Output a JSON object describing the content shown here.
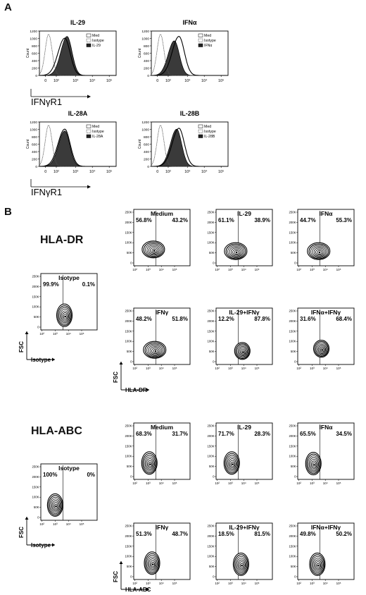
{
  "panels": [
    {
      "letter": "A"
    },
    {
      "letter": "B"
    }
  ],
  "section_a": {
    "xaxis_label": "IFNγR1",
    "ylabel": "Count",
    "yticks": [
      "0",
      "200",
      "400",
      "600",
      "800",
      "1000",
      "1200"
    ],
    "xticks": [
      "0",
      "10²",
      "10³",
      "10⁴",
      "10⁵"
    ]
  },
  "section_b": {
    "groups": [
      {
        "title": "HLA-DR",
        "xlabel": "HLA-DR",
        "iso_xlabel": "Isotype"
      },
      {
        "title": "HLA-ABC",
        "xlabel": "HLA-ABC",
        "iso_xlabel": "Isotype"
      }
    ],
    "ylabel": "FSC",
    "yticks": [
      "0",
      "50K",
      "100K",
      "150K",
      "200K",
      "250K"
    ],
    "xticks": [
      "10²",
      "10³",
      "10⁴",
      "10⁵"
    ]
  },
  "chart_data": [
    {
      "type": "histogram",
      "title": "IL-29",
      "legend": [
        "Med",
        "Isotype",
        "IL-29"
      ],
      "xlabel": "IFNγR1",
      "ylabel": "Count",
      "ylim": [
        0,
        1200
      ]
    },
    {
      "type": "histogram",
      "title": "IFNα",
      "legend": [
        "Med",
        "Isotype",
        "IFNα"
      ],
      "xlabel": "IFNγR1",
      "ylabel": "Count",
      "ylim": [
        0,
        1200
      ]
    },
    {
      "type": "histogram",
      "title": "IL-28A",
      "legend": [
        "Med",
        "Isotype",
        "IL-28A"
      ],
      "xlabel": "IFNγR1",
      "ylabel": "Count",
      "ylim": [
        0,
        1200
      ]
    },
    {
      "type": "histogram",
      "title": "IL-28B",
      "legend": [
        "Med",
        "Isotype",
        "IL-28B"
      ],
      "xlabel": "IFNγR1",
      "ylabel": "Count",
      "ylim": [
        0,
        1200
      ]
    },
    {
      "type": "contour",
      "group": "HLA-DR",
      "title": "Isotype",
      "left_pct": "99.9%",
      "right_pct": "0.1%",
      "center_log": 3.4
    },
    {
      "type": "contour",
      "group": "HLA-DR",
      "title": "Medium",
      "left_pct": "56.8%",
      "right_pct": "43.2%",
      "center_log": 3.1
    },
    {
      "type": "contour",
      "group": "HLA-DR",
      "title": "IL-29",
      "left_pct": "61.1%",
      "right_pct": "38.9%",
      "center_log": 3.1
    },
    {
      "type": "contour",
      "group": "HLA-DR",
      "title": "IFNα",
      "left_pct": "44.7%",
      "right_pct": "55.3%",
      "center_log": 3.2
    },
    {
      "type": "contour",
      "group": "HLA-DR",
      "title": "IFNγ",
      "left_pct": "48.2%",
      "right_pct": "51.8%",
      "center_log": 3.2
    },
    {
      "type": "contour",
      "group": "HLA-DR",
      "title": "IL-29+IFNγ",
      "left_pct": "12.2%",
      "right_pct": "87.8%",
      "center_log": 3.6
    },
    {
      "type": "contour",
      "group": "HLA-DR",
      "title": "IFNα+IFNγ",
      "left_pct": "31.6%",
      "right_pct": "68.4%",
      "center_log": 3.4
    },
    {
      "type": "contour",
      "group": "HLA-ABC",
      "title": "Isotype",
      "left_pct": "100%",
      "right_pct": "0%",
      "center_log": 2.7
    },
    {
      "type": "contour",
      "group": "HLA-ABC",
      "title": "Medium",
      "left_pct": "68.3%",
      "right_pct": "31.7%",
      "center_log": 2.8
    },
    {
      "type": "contour",
      "group": "HLA-ABC",
      "title": "IL-29",
      "left_pct": "71.7%",
      "right_pct": "28.3%",
      "center_log": 2.8
    },
    {
      "type": "contour",
      "group": "HLA-ABC",
      "title": "IFNα",
      "left_pct": "65.5%",
      "right_pct": "34.5%",
      "center_log": 2.8
    },
    {
      "type": "contour",
      "group": "HLA-ABC",
      "title": "IFNγ",
      "left_pct": "51.3%",
      "right_pct": "48.7%",
      "center_log": 3.0
    },
    {
      "type": "contour",
      "group": "HLA-ABC",
      "title": "IL-29+IFNγ",
      "left_pct": "18.5%",
      "right_pct": "81.5%",
      "center_log": 3.5
    },
    {
      "type": "contour",
      "group": "HLA-ABC",
      "title": "IFNα+IFNγ",
      "left_pct": "49.8%",
      "right_pct": "50.2%",
      "center_log": 3.1
    }
  ]
}
